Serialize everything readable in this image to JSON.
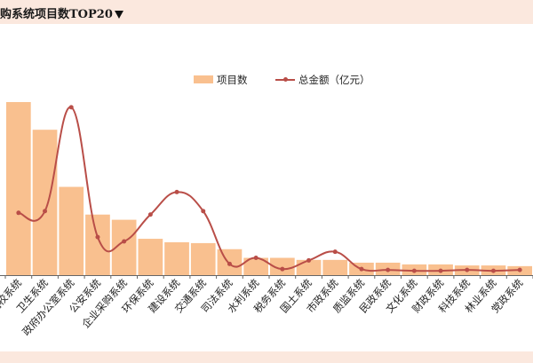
{
  "header": {
    "title": "购系统项目数TOP20"
  },
  "legend": {
    "bar_label": "项目数",
    "line_label": "总金额（亿元）"
  },
  "colors": {
    "bar": "#f9c08f",
    "line": "#b94e48",
    "band": "#fbe8de"
  },
  "chart_data": {
    "type": "bar",
    "categories": [
      "高校系统",
      "卫生系统",
      "政府办公室系统",
      "公安系统",
      "企业采购系统",
      "环保系统",
      "建设系统",
      "交通系统",
      "司法系统",
      "水利系统",
      "税务系统",
      "国土系统",
      "市政系统",
      "质监系统",
      "民政系统",
      "文化系统",
      "财政系统",
      "科技系统",
      "林业系统",
      "党政系统"
    ],
    "series": [
      {
        "name": "项目数",
        "type": "bar",
        "values": [
          100,
          84,
          51,
          35,
          32,
          21,
          19,
          18.5,
          15,
          10,
          10,
          8.8,
          8.8,
          7.2,
          7.2,
          6.2,
          6.2,
          5.6,
          5.6,
          5.2
        ]
      },
      {
        "name": "总金额（亿元）",
        "type": "line",
        "values": [
          36,
          37,
          97,
          22,
          19.5,
          35,
          48,
          37,
          6.5,
          10,
          3.5,
          8.5,
          13.5,
          3.5,
          3,
          2.5,
          2.5,
          3,
          2.5,
          3
        ]
      }
    ],
    "ylim": [
      0,
      100
    ],
    "grid": false,
    "legend_position": "top-center"
  }
}
